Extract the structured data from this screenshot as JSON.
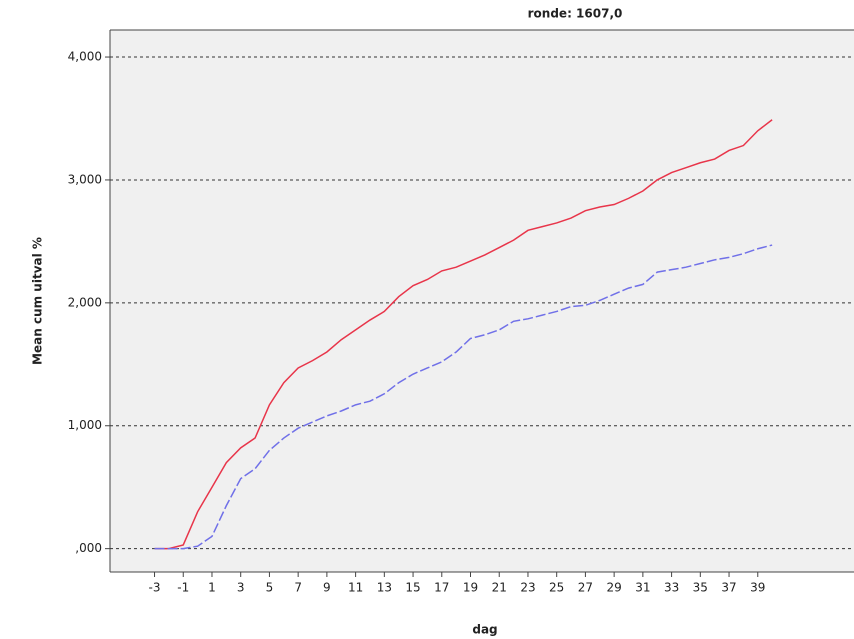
{
  "chart_data": {
    "type": "line",
    "title": "ronde: 1607,0",
    "x_label": "dag",
    "y_label": "Mean cum uitval %",
    "x": [
      -3,
      -2,
      -1,
      0,
      1,
      2,
      3,
      4,
      5,
      6,
      7,
      8,
      9,
      10,
      11,
      12,
      13,
      14,
      15,
      16,
      17,
      18,
      19,
      20,
      21,
      22,
      23,
      24,
      25,
      26,
      27,
      28,
      29,
      30,
      31,
      32,
      33,
      34,
      35,
      36,
      37,
      38,
      39,
      40
    ],
    "series": [
      {
        "color": "#e8354a",
        "dash": false,
        "values": [
          0,
          0,
          0.03,
          0.3,
          0.5,
          0.7,
          0.82,
          0.9,
          1.17,
          1.35,
          1.47,
          1.53,
          1.6,
          1.7,
          1.78,
          1.86,
          1.93,
          2.05,
          2.14,
          2.19,
          2.26,
          2.29,
          2.34,
          2.39,
          2.45,
          2.51,
          2.59,
          2.62,
          2.65,
          2.69,
          2.75,
          2.78,
          2.8,
          2.85,
          2.91,
          3.0,
          3.06,
          3.1,
          3.14,
          3.17,
          3.24,
          3.28,
          3.4,
          3.49
        ]
      },
      {
        "color": "#7070e8",
        "dash": true,
        "values": [
          0,
          0,
          0,
          0.02,
          0.1,
          0.35,
          0.57,
          0.65,
          0.8,
          0.9,
          0.98,
          1.03,
          1.08,
          1.12,
          1.17,
          1.2,
          1.26,
          1.35,
          1.42,
          1.47,
          1.52,
          1.6,
          1.71,
          1.74,
          1.78,
          1.85,
          1.87,
          1.9,
          1.93,
          1.97,
          1.98,
          2.02,
          2.07,
          2.12,
          2.15,
          2.25,
          2.27,
          2.29,
          2.32,
          2.35,
          2.37,
          2.4,
          2.44,
          2.47
        ]
      }
    ],
    "xlim": [
      -6.1,
      45.7
    ],
    "ylim": [
      -0.19,
      4.22
    ],
    "xticks": [
      -3,
      -1,
      1,
      3,
      5,
      7,
      9,
      11,
      13,
      15,
      17,
      19,
      21,
      23,
      25,
      27,
      29,
      31,
      33,
      35,
      37,
      39
    ],
    "yticks": [
      {
        "value": 0,
        "label": ",000"
      },
      {
        "value": 1,
        "label": "1,000"
      },
      {
        "value": 2,
        "label": "2,000"
      },
      {
        "value": 3,
        "label": "3,000"
      },
      {
        "value": 4,
        "label": "4,000"
      }
    ],
    "grid": true
  }
}
